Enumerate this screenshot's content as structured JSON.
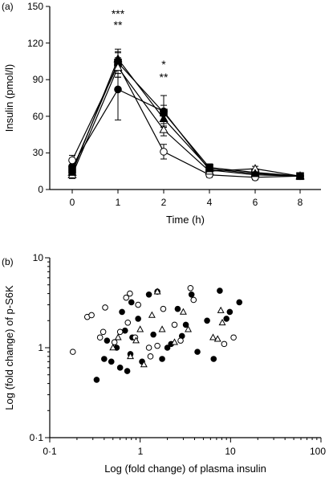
{
  "chart_data": [
    {
      "panel_label": "(a)",
      "type": "line",
      "xlabel": "Time (h)",
      "ylabel": "Insulin (pmol/l)",
      "x_ticks": [
        "0",
        "1",
        "2",
        "4",
        "6",
        "8"
      ],
      "y_ticks": [
        "0",
        "30",
        "60",
        "90",
        "120",
        "150"
      ],
      "ylim": [
        0,
        150
      ],
      "marker_colors": {
        "filled_circle": "#000000",
        "open_circle": "#ffffff",
        "filled_square": "#000000",
        "open_triangle": "#ffffff",
        "filled_triangle": "#000000"
      },
      "series": [
        {
          "marker": "filled-circle",
          "values": [
            19,
            82,
            64,
            16,
            12,
            11
          ],
          "errors": [
            4,
            25,
            13,
            3,
            2,
            2
          ]
        },
        {
          "marker": "open-circle",
          "values": [
            24,
            102,
            31,
            12,
            10,
            11
          ],
          "errors": [
            4,
            10,
            6,
            2,
            2,
            2
          ]
        },
        {
          "marker": "filled-square",
          "values": [
            16,
            104,
            63,
            18,
            14,
            11
          ],
          "errors": [
            3,
            9,
            6,
            3,
            2,
            2
          ]
        },
        {
          "marker": "open-triangle",
          "values": [
            12,
            100,
            49,
            15,
            17,
            11
          ],
          "errors": [
            3,
            8,
            5,
            2,
            2,
            2
          ]
        },
        {
          "marker": "filled-triangle",
          "values": [
            14,
            107,
            58,
            17,
            13,
            11
          ],
          "errors": [
            3,
            8,
            6,
            2,
            2,
            2
          ]
        }
      ],
      "annotations": [
        {
          "x_index": 1,
          "lines": [
            "***",
            "**"
          ]
        },
        {
          "x_index": 2,
          "lines": [
            "*",
            "**"
          ]
        }
      ]
    },
    {
      "panel_label": "(b)",
      "type": "scatter",
      "xlabel": "Log (fold change) of plasma insulin",
      "ylabel": "Log (fold change) of p-S6K",
      "x_scale": "log",
      "y_scale": "log",
      "xlim": [
        0.1,
        100
      ],
      "ylim": [
        0.1,
        10
      ],
      "x_ticks": [
        "0·1",
        "1",
        "10",
        "100"
      ],
      "y_ticks": [
        "0·1",
        "1",
        "10"
      ],
      "series": [
        {
          "marker": "filled-circle",
          "points": [
            [
              0.33,
              0.44
            ],
            [
              0.4,
              0.75
            ],
            [
              0.43,
              1.2
            ],
            [
              0.48,
              0.7
            ],
            [
              0.55,
              1.0
            ],
            [
              0.6,
              0.6
            ],
            [
              0.63,
              2.5
            ],
            [
              0.68,
              1.55
            ],
            [
              0.72,
              0.55
            ],
            [
              0.78,
              0.85
            ],
            [
              0.8,
              3.2
            ],
            [
              0.82,
              1.3
            ],
            [
              0.95,
              2.1
            ],
            [
              1.05,
              0.7
            ],
            [
              1.25,
              3.9
            ],
            [
              1.4,
              1.4
            ],
            [
              1.55,
              4.2
            ],
            [
              1.75,
              0.75
            ],
            [
              2.0,
              1.0
            ],
            [
              2.2,
              1.1
            ],
            [
              2.6,
              2.7
            ],
            [
              2.9,
              1.35
            ],
            [
              3.2,
              1.8
            ],
            [
              3.7,
              3.9
            ],
            [
              4.3,
              0.9
            ],
            [
              5.5,
              2.0
            ],
            [
              6.5,
              0.75
            ],
            [
              7.6,
              4.3
            ],
            [
              9.0,
              2.1
            ],
            [
              9.8,
              2.5
            ],
            [
              12.5,
              3.2
            ]
          ]
        },
        {
          "marker": "open-circle",
          "points": [
            [
              0.18,
              0.9
            ],
            [
              0.26,
              2.2
            ],
            [
              0.29,
              2.3
            ],
            [
              0.36,
              1.3
            ],
            [
              0.39,
              1.5
            ],
            [
              0.41,
              2.8
            ],
            [
              0.52,
              1.15
            ],
            [
              0.6,
              1.5
            ],
            [
              0.7,
              3.6
            ],
            [
              0.73,
              1.9
            ],
            [
              0.77,
              4.0
            ],
            [
              0.88,
              1.3
            ],
            [
              0.95,
              3.0
            ],
            [
              1.25,
              1.0
            ],
            [
              1.3,
              0.8
            ],
            [
              1.55,
              1.05
            ],
            [
              1.8,
              2.7
            ],
            [
              2.4,
              1.8
            ],
            [
              2.8,
              1.2
            ],
            [
              3.6,
              4.6
            ],
            [
              3.9,
              3.4
            ],
            [
              8.5,
              1.1
            ],
            [
              10.8,
              1.3
            ]
          ]
        },
        {
          "marker": "open-triangle",
          "points": [
            [
              0.5,
              1.0
            ],
            [
              0.57,
              1.3
            ],
            [
              0.78,
              0.8
            ],
            [
              0.9,
              1.2
            ],
            [
              1.0,
              1.6
            ],
            [
              1.1,
              0.65
            ],
            [
              1.35,
              2.3
            ],
            [
              1.55,
              4.2
            ],
            [
              1.75,
              1.6
            ],
            [
              2.4,
              1.15
            ],
            [
              3.0,
              2.5
            ],
            [
              3.4,
              1.6
            ],
            [
              6.4,
              1.3
            ],
            [
              7.2,
              1.25
            ],
            [
              7.8,
              2.6
            ],
            [
              8.1,
              1.9
            ]
          ]
        }
      ]
    }
  ]
}
